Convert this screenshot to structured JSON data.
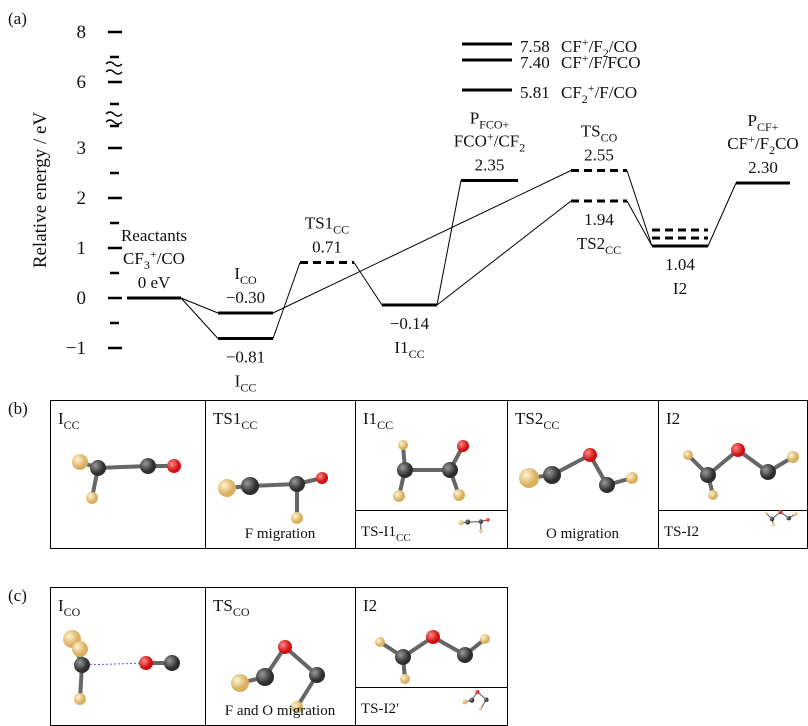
{
  "panel_a": {
    "label": "(a)",
    "y_label": "Relative energy / eV",
    "yticks": [
      8,
      6,
      3,
      2,
      1,
      0,
      {
        "value": -1,
        "label": "−1"
      }
    ],
    "yminor": [
      7,
      5,
      4,
      2.5,
      1.5,
      0.5,
      -0.5
    ],
    "levels": [
      {
        "name": [
          [
            "Reactants"
          ],
          [
            "CF",
            {
              "sub": "3"
            },
            {
              "sup": "+"
            },
            "/CO"
          ]
        ],
        "value": 0,
        "value_label": "0 eV",
        "position": "above",
        "dashed": false
      },
      {
        "name": [
          [
            "I",
            {
              "sub": "CO"
            }
          ]
        ],
        "value": -0.3,
        "value_label": "−0.30",
        "position": "above",
        "dashed": false
      },
      {
        "name": [
          [
            "I",
            {
              "sub": "CC"
            }
          ]
        ],
        "value": -0.81,
        "value_label": "−0.81",
        "position": "below",
        "dashed": false
      },
      {
        "name": [
          [
            "TS1",
            {
              "sub": "CC"
            }
          ]
        ],
        "value": 0.71,
        "position": "above",
        "dashed": true
      },
      {
        "name": [
          [
            "I1",
            {
              "sub": "CC"
            }
          ]
        ],
        "value": -0.14,
        "value_label": "−0.14",
        "position": "below",
        "dashed": false
      },
      {
        "name": [
          [
            "P",
            {
              "sub": "FCO+"
            }
          ],
          [
            "FCO",
            {
              "sup": "+"
            },
            "/CF",
            {
              "sub": "2"
            }
          ]
        ],
        "value": 2.35,
        "position": "above",
        "dashed": false
      },
      {
        "name": [
          [
            "TS",
            {
              "sub": "CO"
            }
          ]
        ],
        "value": 2.55,
        "position": "above",
        "dashed": true
      },
      {
        "name": [
          [
            "TS2",
            {
              "sub": "CC"
            }
          ]
        ],
        "value": 1.94,
        "position": "below",
        "dashed": true
      },
      {
        "name": [
          [
            "I2"
          ]
        ],
        "value": 1.04,
        "position": "below",
        "dashed": false,
        "extra_levels": [
          {
            "value": 1.36,
            "dashed": true
          },
          {
            "value": 1.2,
            "dashed": true
          }
        ]
      },
      {
        "name": [
          [
            "P",
            {
              "sub": "CF+"
            }
          ],
          [
            "CF",
            {
              "sup": "+"
            },
            "/F",
            {
              "sub": "2"
            },
            "CO"
          ]
        ],
        "value": 2.3,
        "value_label": "2.30",
        "position": "above",
        "dashed": false
      }
    ],
    "high_levels": [
      {
        "value": 7.58,
        "name": [
          "CF",
          {
            "sup": "+"
          },
          "/F",
          {
            "sub": "2"
          },
          "/CO"
        ]
      },
      {
        "value": 7.4,
        "value_label": "7.40",
        "name": [
          "CF",
          {
            "sup": "+"
          },
          "/F/FCO"
        ]
      },
      {
        "value": 5.81,
        "name": [
          "CF",
          {
            "sub": "2"
          },
          {
            "sup": "+"
          },
          "/F/CO"
        ]
      }
    ]
  },
  "panel_b": {
    "label": "(b)",
    "boxes": [
      {
        "title": [
          "I",
          {
            "sub": "CC"
          }
        ]
      },
      {
        "title": [
          "TS1",
          {
            "sub": "CC"
          }
        ],
        "caption": "F migration"
      },
      {
        "title": [
          "I1",
          {
            "sub": "CC"
          }
        ],
        "inset": [
          "TS-I1",
          {
            "sub": "CC"
          }
        ]
      },
      {
        "title": [
          "TS2",
          {
            "sub": "CC"
          }
        ],
        "caption": "O migration"
      },
      {
        "title": [
          "I2"
        ],
        "inset": [
          "TS-I2"
        ]
      }
    ]
  },
  "panel_c": {
    "label": "(c)",
    "boxes": [
      {
        "title": [
          "I",
          {
            "sub": "CO"
          }
        ]
      },
      {
        "title": [
          "TS",
          {
            "sub": "CO"
          }
        ],
        "caption": "F and O migration"
      },
      {
        "title": [
          "I2"
        ],
        "inset": [
          "TS-I2′"
        ]
      }
    ]
  }
}
